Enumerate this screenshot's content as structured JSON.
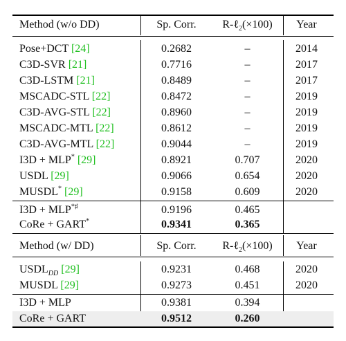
{
  "table1": {
    "header": {
      "method": "Method (w/o DD)",
      "corr": "Sp. Corr.",
      "rl2": "R-ℓ",
      "rl2_sub": "2",
      "rl2_suffix": "(×100)",
      "year": "Year"
    },
    "rows": [
      {
        "name": "Pose+DCT",
        "ref": "[24]",
        "corr": "0.2682",
        "rl2": "–",
        "year": "2014"
      },
      {
        "name": "C3D-SVR",
        "ref": "[21]",
        "corr": "0.7716",
        "rl2": "–",
        "year": "2017"
      },
      {
        "name": "C3D-LSTM",
        "ref": "[21]",
        "corr": "0.8489",
        "rl2": "–",
        "year": "2017"
      },
      {
        "name": "MSCADC-STL",
        "ref": "[22]",
        "corr": "0.8472",
        "rl2": "–",
        "year": "2019"
      },
      {
        "name": "C3D-AVG-STL",
        "ref": "[22]",
        "corr": "0.8960",
        "rl2": "–",
        "year": "2019"
      },
      {
        "name": "MSCADC-MTL",
        "ref": "[22]",
        "corr": "0.8612",
        "rl2": "–",
        "year": "2019"
      },
      {
        "name": "C3D-AVG-MTL",
        "ref": "[22]",
        "corr": "0.9044",
        "rl2": "–",
        "year": "2019"
      },
      {
        "name": "I3D + MLP",
        "sup": "*",
        "ref": "[29]",
        "corr": "0.8921",
        "rl2": "0.707",
        "year": "2020"
      },
      {
        "name": "USDL",
        "ref": "[29]",
        "corr": "0.9066",
        "rl2": "0.654",
        "year": "2020"
      },
      {
        "name": "MUSDL",
        "sup": "*",
        "ref": "[29]",
        "corr": "0.9158",
        "rl2": "0.609",
        "year": "2020"
      }
    ],
    "ours": [
      {
        "name": "I3D + MLP",
        "sup": "*♯",
        "corr": "0.9196",
        "rl2": "0.465",
        "year": ""
      },
      {
        "name": "CoRe + GART",
        "sup": "*",
        "corr": "0.9341",
        "rl2": "0.365",
        "year": ""
      }
    ]
  },
  "table2": {
    "header": {
      "method": "Method (w/ DD)",
      "corr": "Sp. Corr.",
      "rl2": "R-ℓ",
      "rl2_sub": "2",
      "rl2_suffix": "(×100)",
      "year": "Year"
    },
    "rows": [
      {
        "name": "USDL",
        "sub": "DD",
        "ref": "[29]",
        "corr": "0.9231",
        "rl2": "0.468",
        "year": "2020"
      },
      {
        "name": "MUSDL",
        "ref": "[29]",
        "corr": "0.9273",
        "rl2": "0.451",
        "year": "2020"
      }
    ],
    "ours": [
      {
        "name": "I3D + MLP",
        "corr": "0.9381",
        "rl2": "0.394",
        "year": ""
      },
      {
        "name": "CoRe + GART",
        "corr": "0.9512",
        "rl2": "0.260",
        "year": ""
      }
    ]
  }
}
